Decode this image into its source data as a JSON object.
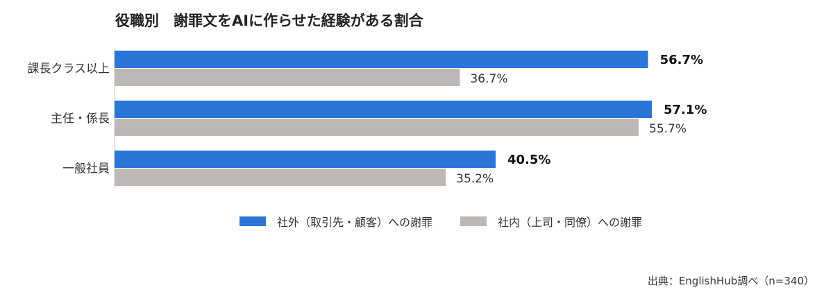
{
  "chart_data": {
    "type": "bar",
    "orientation": "horizontal",
    "title": "役職別　謝罪文をAIに作らせた経験がある割合",
    "categories": [
      "課長クラス以上",
      "主任・係長",
      "一般社員"
    ],
    "series": [
      {
        "name": "社外（取引先・顧客）への謝罪",
        "values": [
          56.7,
          57.1,
          40.5
        ],
        "labels": [
          "56.7%",
          "57.1%",
          "40.5%"
        ],
        "color": "#2a75d6"
      },
      {
        "name": "社内（上司・同僚）への謝罪",
        "values": [
          36.7,
          55.7,
          35.2
        ],
        "labels": [
          "36.7%",
          "55.7%",
          "35.2%"
        ],
        "color": "#bdb8b6"
      }
    ],
    "xlim": [
      0,
      60
    ],
    "grid": false,
    "legend_position": "bottom"
  },
  "source": "出典：EnglishHub調べ（n=340）"
}
